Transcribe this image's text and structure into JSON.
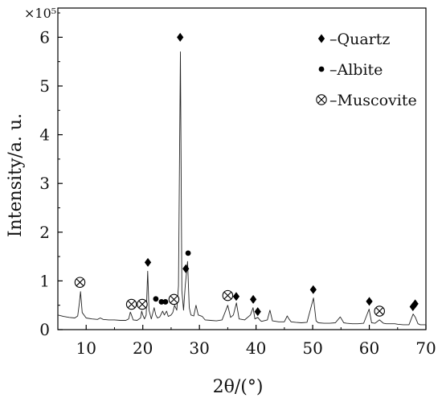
{
  "chart_data": {
    "type": "line",
    "xlabel": "2θ/(°)",
    "ylabel": "Intensity/a. u.",
    "y_multiplier": "×10⁵",
    "xlim": [
      5,
      70
    ],
    "ylim": [
      0,
      6.6
    ],
    "x_ticks": [
      10,
      20,
      30,
      40,
      50,
      60,
      70
    ],
    "y_ticks": [
      0,
      1,
      2,
      3,
      4,
      5,
      6
    ],
    "grid": false,
    "legend_position": "top-right",
    "legend": [
      {
        "symbol": "diamond",
        "label": "–Quartz"
      },
      {
        "symbol": "dot",
        "label": "–Albite"
      },
      {
        "symbol": "circle-x",
        "label": "–Muscovite"
      }
    ],
    "series": [
      {
        "x": [
          5,
          6,
          7,
          8,
          8.5,
          8.8,
          9.0,
          9.3,
          10,
          11,
          12,
          12.5,
          13,
          14,
          15,
          16,
          17,
          17.5,
          17.8,
          18.0,
          18.3,
          19,
          19.6,
          19.8,
          20.0,
          20.3,
          20.6,
          20.86,
          21.1,
          21.5,
          22.0,
          22.3,
          22.6,
          23.0,
          23.5,
          23.8,
          24.2,
          24.5,
          25.0,
          25.3,
          25.6,
          26.0,
          26.3,
          26.64,
          26.9,
          27.2,
          27.5,
          27.9,
          28.2,
          28.5,
          29.0,
          29.4,
          29.8,
          30.5,
          31,
          32,
          33,
          34,
          34.5,
          35.0,
          35.5,
          36,
          36.54,
          37,
          38,
          39,
          39.47,
          39.8,
          40.29,
          40.8,
          41,
          42,
          42.45,
          42.9,
          44,
          45,
          45.5,
          45.8,
          46.2,
          47,
          48,
          49,
          50.14,
          50.6,
          51,
          52,
          53,
          54,
          54.87,
          55.5,
          56,
          57,
          58,
          59,
          59.96,
          60.4,
          61,
          61.8,
          62.5,
          63,
          64,
          64.5,
          65,
          66,
          67,
          67.74,
          68.14,
          68.6,
          69,
          70
        ],
        "y": [
          0.3,
          0.27,
          0.25,
          0.24,
          0.28,
          0.55,
          0.78,
          0.35,
          0.24,
          0.22,
          0.21,
          0.24,
          0.21,
          0.2,
          0.2,
          0.19,
          0.19,
          0.22,
          0.36,
          0.3,
          0.2,
          0.19,
          0.24,
          0.38,
          0.3,
          0.22,
          0.3,
          1.2,
          0.4,
          0.22,
          0.45,
          0.3,
          0.24,
          0.26,
          0.38,
          0.3,
          0.38,
          0.27,
          0.3,
          0.35,
          0.5,
          0.4,
          0.9,
          5.7,
          0.8,
          0.4,
          0.9,
          1.4,
          0.45,
          0.3,
          0.28,
          0.5,
          0.3,
          0.27,
          0.2,
          0.19,
          0.18,
          0.2,
          0.35,
          0.5,
          0.25,
          0.3,
          0.55,
          0.22,
          0.2,
          0.3,
          0.45,
          0.22,
          0.25,
          0.18,
          0.17,
          0.2,
          0.4,
          0.18,
          0.16,
          0.16,
          0.28,
          0.22,
          0.16,
          0.15,
          0.14,
          0.15,
          0.65,
          0.18,
          0.14,
          0.13,
          0.13,
          0.14,
          0.26,
          0.14,
          0.13,
          0.12,
          0.12,
          0.13,
          0.42,
          0.14,
          0.13,
          0.2,
          0.13,
          0.12,
          0.12,
          0.12,
          0.11,
          0.1,
          0.1,
          0.32,
          0.25,
          0.12,
          0.1,
          0.1
        ]
      }
    ],
    "annotations": [
      {
        "symbol": "circle-x",
        "x": 8.9,
        "y": 0.97
      },
      {
        "symbol": "circle-x",
        "x": 18.0,
        "y": 0.52
      },
      {
        "symbol": "circle-x",
        "x": 19.9,
        "y": 0.52
      },
      {
        "symbol": "circle-x",
        "x": 25.5,
        "y": 0.62
      },
      {
        "symbol": "circle-x",
        "x": 35.0,
        "y": 0.7
      },
      {
        "symbol": "circle-x",
        "x": 61.8,
        "y": 0.38
      },
      {
        "symbol": "diamond",
        "x": 20.9,
        "y": 1.38
      },
      {
        "symbol": "diamond",
        "x": 26.6,
        "y": 6.0
      },
      {
        "symbol": "diamond",
        "x": 27.6,
        "y": 1.25
      },
      {
        "symbol": "diamond",
        "x": 36.5,
        "y": 0.68
      },
      {
        "symbol": "diamond",
        "x": 39.5,
        "y": 0.62
      },
      {
        "symbol": "diamond",
        "x": 40.3,
        "y": 0.37
      },
      {
        "symbol": "diamond",
        "x": 50.1,
        "y": 0.82
      },
      {
        "symbol": "diamond",
        "x": 60.0,
        "y": 0.58
      },
      {
        "symbol": "diamond",
        "x": 67.7,
        "y": 0.47
      },
      {
        "symbol": "diamond",
        "x": 68.1,
        "y": 0.53
      },
      {
        "symbol": "dot",
        "x": 22.3,
        "y": 0.63
      },
      {
        "symbol": "dot",
        "x": 23.3,
        "y": 0.57
      },
      {
        "symbol": "dot",
        "x": 24.0,
        "y": 0.57
      },
      {
        "symbol": "dot",
        "x": 28.0,
        "y": 1.57
      }
    ]
  }
}
